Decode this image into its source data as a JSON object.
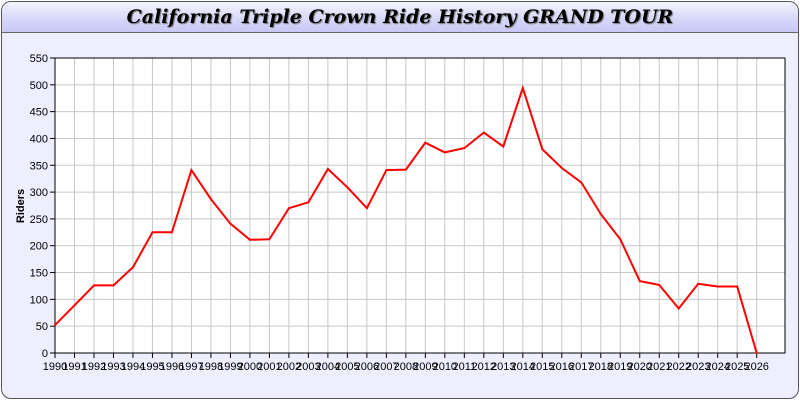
{
  "chart_data": {
    "type": "line",
    "title": "California Triple Crown Ride History GRAND TOUR",
    "xlabel": "",
    "ylabel": "Riders",
    "ylim": [
      0,
      550
    ],
    "yticks": [
      0,
      50,
      100,
      150,
      200,
      250,
      300,
      350,
      400,
      450,
      500,
      550
    ],
    "grid": true,
    "line_color": "#ff0000",
    "x": [
      1990,
      1991,
      1992,
      1993,
      1994,
      1995,
      1996,
      1997,
      1998,
      1999,
      2000,
      2001,
      2002,
      2003,
      2004,
      2005,
      2006,
      2007,
      2008,
      2009,
      2010,
      2011,
      2012,
      2013,
      2014,
      2015,
      2016,
      2017,
      2018,
      2019,
      2020,
      2021,
      2022,
      2023,
      2024,
      2025,
      2026
    ],
    "series": [
      {
        "values": [
          52,
          89,
          126,
          126,
          160,
          225,
          225,
          341,
          287,
          241,
          211,
          212,
          270,
          281,
          343,
          309,
          270,
          341,
          342,
          392,
          374,
          382,
          411,
          385,
          494,
          380,
          345,
          318,
          259,
          212,
          134,
          127,
          83,
          129,
          124,
          124,
          0
        ]
      }
    ]
  }
}
